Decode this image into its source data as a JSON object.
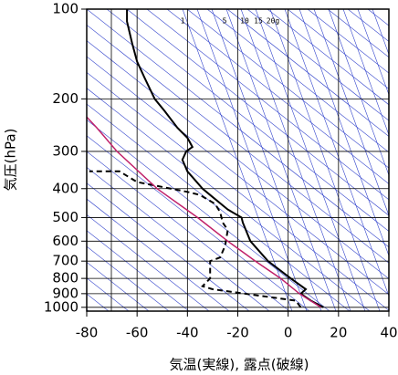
{
  "chart_data": {
    "type": "line",
    "y_scale": "log",
    "x_label": "気温(実線), 露点(破線)",
    "y_label": "気圧(hPa)",
    "xlim": [
      -80,
      40
    ],
    "xticks": [
      -80,
      -60,
      -40,
      -20,
      0,
      20,
      40
    ],
    "ylim": [
      100,
      1030
    ],
    "yticks": [
      100,
      200,
      300,
      400,
      500,
      600,
      700,
      800,
      900,
      1000
    ],
    "grid": true,
    "mixing_ratio_labels": [
      "1",
      "5",
      "10",
      "15",
      "20g"
    ],
    "series": [
      {
        "color": "#000000",
        "dash": false,
        "y": [
          1000,
          950,
          900,
          870,
          800,
          700,
          600,
          520,
          500,
          470,
          420,
          400,
          350,
          320,
          300,
          290,
          270,
          250,
          220,
          200,
          170,
          150,
          130,
          110,
          100
        ],
        "values": [
          14,
          9,
          5,
          7,
          1,
          -8,
          -15,
          -18,
          -18.5,
          -24,
          -31,
          -34,
          -40,
          -42,
          -40.5,
          -38,
          -40,
          -44,
          -49,
          -53,
          -57,
          -60,
          -62,
          -64,
          -64
        ]
      },
      {
        "color": "#000000",
        "dash": true,
        "y": [
          1000,
          950,
          870,
          850,
          800,
          750,
          700,
          680,
          620,
          550,
          520,
          480,
          450,
          420,
          410,
          380,
          350,
          350,
          350
        ],
        "values": [
          5,
          3,
          -30,
          -34,
          -31,
          -31,
          -31,
          -27,
          -25,
          -24,
          -26,
          -27,
          -29,
          -35,
          -40,
          -60,
          -67,
          -75,
          -79
        ]
      },
      {
        "color": "#c0206a",
        "dash": false,
        "y": [
          1000,
          900,
          800,
          700,
          600,
          500,
          400,
          300,
          250,
          230
        ],
        "values": [
          13,
          4.5,
          -3,
          -13,
          -24,
          -36,
          -52,
          -68,
          -76,
          -80
        ]
      }
    ]
  }
}
